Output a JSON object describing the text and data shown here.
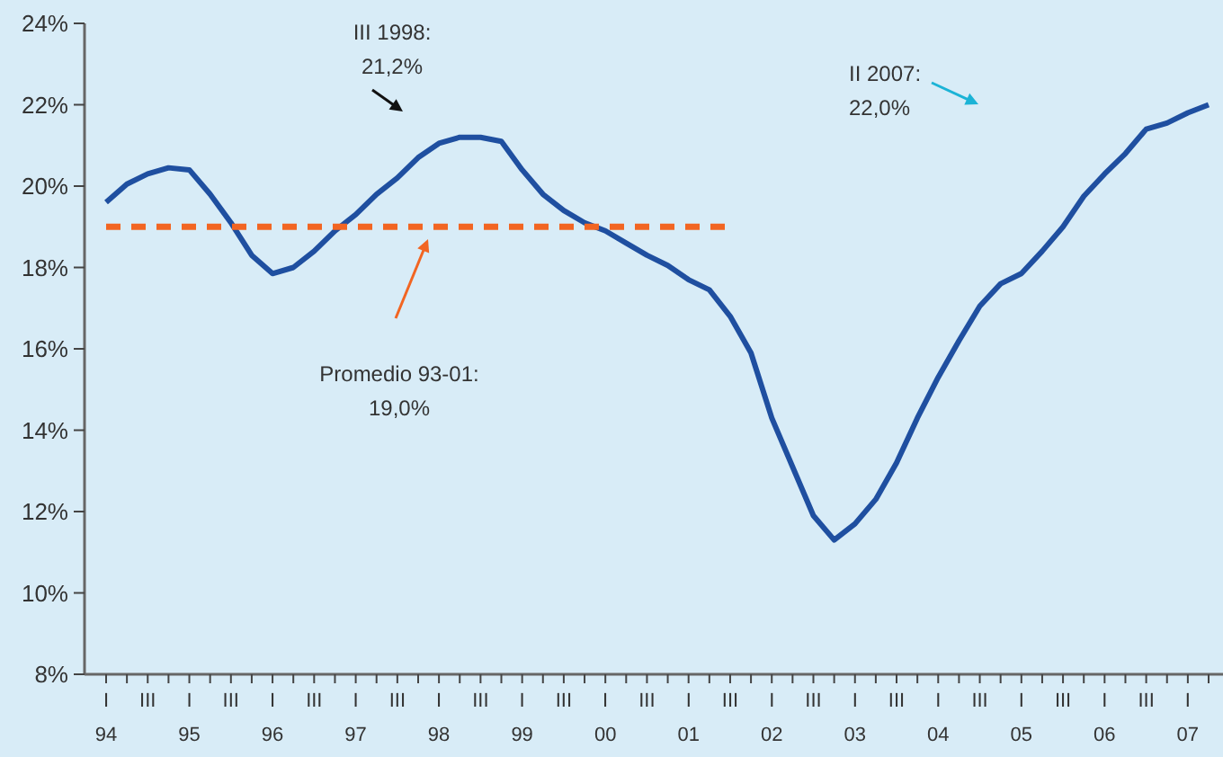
{
  "chart_data": {
    "type": "line",
    "categories": [
      "I\n94",
      null,
      "III",
      null,
      "I\n95",
      null,
      "III",
      null,
      "I\n96",
      null,
      "III",
      null,
      "I\n97",
      null,
      "III",
      null,
      "I\n98",
      null,
      "III",
      null,
      "I\n99",
      null,
      "III",
      null,
      "I\n00",
      null,
      "III",
      null,
      "I\n01",
      null,
      "III",
      null,
      "I\n02",
      null,
      "III",
      null,
      "I\n03",
      null,
      "III",
      null,
      "I\n04",
      null,
      "III",
      null,
      "I\n05",
      null,
      "III",
      null,
      "I\n06",
      null,
      "III",
      null,
      "I\n07",
      null
    ],
    "series": [
      {
        "color": "#1f4fa0",
        "line_style": "solid",
        "values": [
          19.6,
          20.05,
          20.3,
          20.45,
          20.4,
          19.8,
          19.1,
          18.3,
          17.85,
          18.0,
          18.4,
          18.9,
          19.3,
          19.8,
          20.2,
          20.7,
          21.05,
          21.2,
          21.2,
          21.1,
          20.4,
          19.8,
          19.4,
          19.1,
          18.9,
          18.6,
          18.3,
          18.05,
          17.7,
          17.45,
          16.8,
          15.9,
          14.3,
          13.1,
          11.9,
          11.3,
          11.7,
          12.3,
          13.2,
          14.3,
          15.3,
          16.2,
          17.05,
          17.6,
          17.85,
          18.4,
          19.0,
          19.75,
          20.3,
          20.8,
          21.4,
          21.55,
          21.8,
          22.0
        ]
      },
      {
        "color": "#f26522",
        "line_style": "dashed",
        "values": [
          19,
          19,
          19,
          19,
          19,
          19,
          19,
          19,
          19,
          19,
          19,
          19,
          19,
          19,
          19,
          19,
          19,
          19,
          19,
          19,
          19,
          19,
          19,
          19,
          19,
          19,
          19,
          19,
          19,
          19,
          19,
          null,
          null,
          null,
          null,
          null,
          null,
          null,
          null,
          null,
          null,
          null,
          null,
          null,
          null,
          null,
          null,
          null,
          null,
          null,
          null,
          null,
          null,
          null
        ]
      }
    ],
    "ylim": [
      8,
      24
    ],
    "yticks": [
      {
        "value": 8,
        "label": "8%"
      },
      {
        "value": 10,
        "label": "10%"
      },
      {
        "value": 12,
        "label": "12%"
      },
      {
        "value": 14,
        "label": "14%"
      },
      {
        "value": 16,
        "label": "16%"
      },
      {
        "value": 18,
        "label": "18%"
      },
      {
        "value": 20,
        "label": "20%"
      },
      {
        "value": 22,
        "label": "22%"
      },
      {
        "value": 24,
        "label": "24%"
      }
    ],
    "grid": false,
    "marker": "none",
    "annotations": [
      "III 1998:\n21,2%",
      "II 2007:\n22,0%",
      "Promedio 93-01:\n19,0%"
    ]
  }
}
